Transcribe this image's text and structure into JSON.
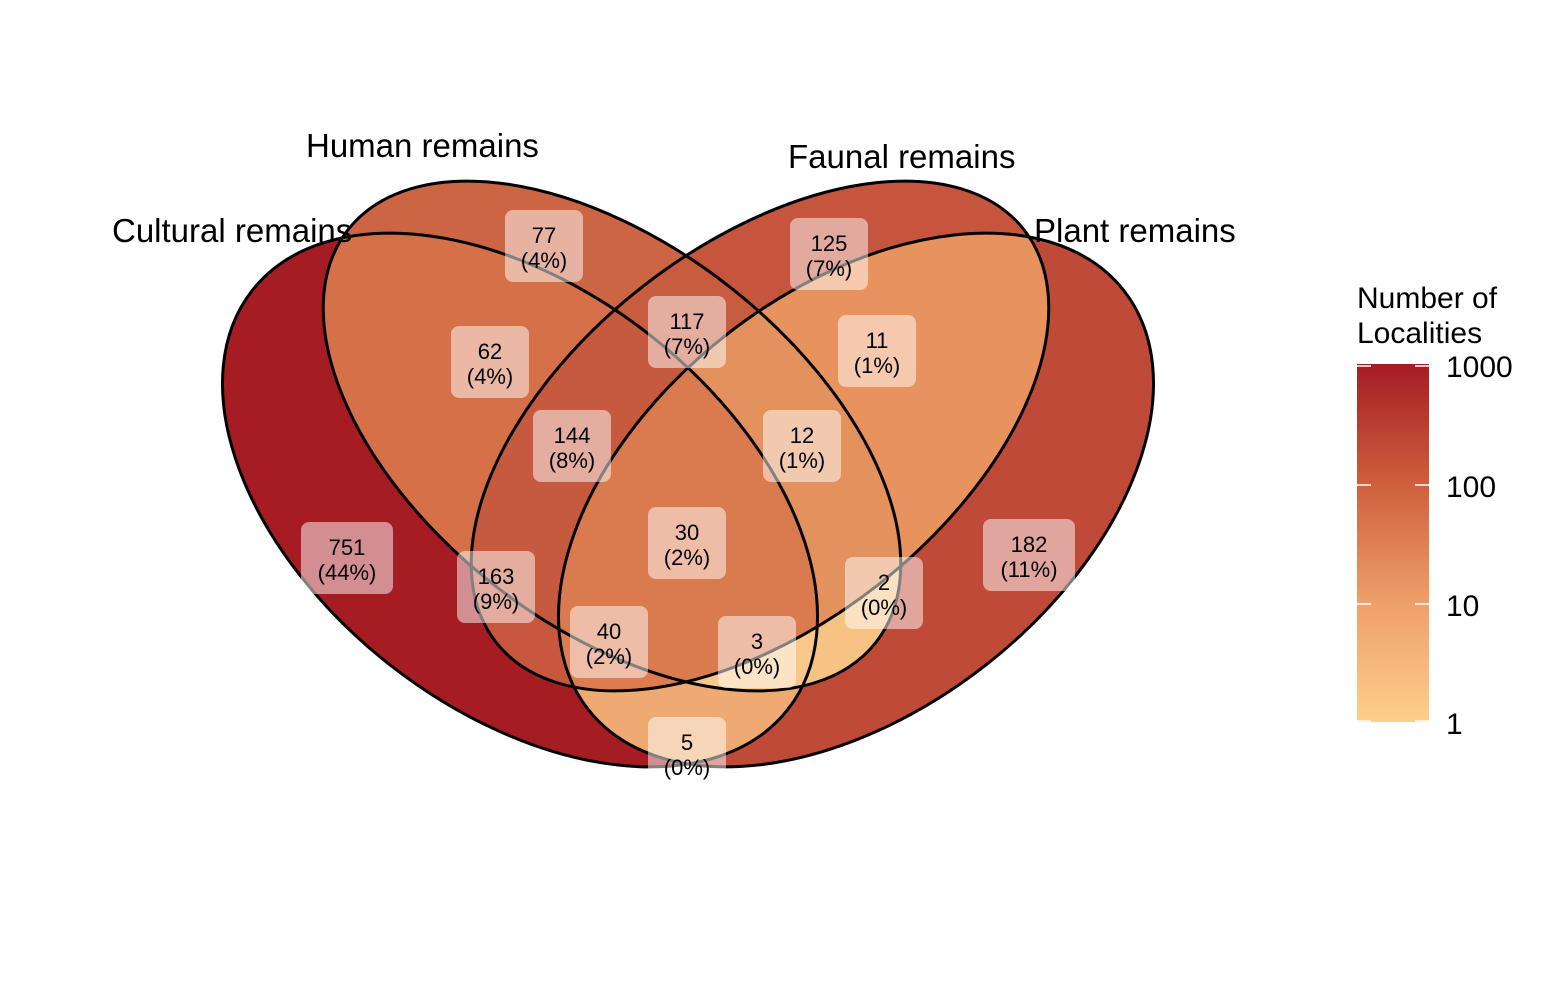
{
  "sets": [
    {
      "id": "cultural",
      "label": "Cultural remains"
    },
    {
      "id": "human",
      "label": "Human remains"
    },
    {
      "id": "faunal",
      "label": "Faunal remains"
    },
    {
      "id": "plant",
      "label": "Plant remains"
    }
  ],
  "regions": [
    {
      "id": "c-only",
      "sets": [
        "cultural"
      ],
      "count": "751",
      "pct": "(44%)",
      "value": 751
    },
    {
      "id": "h-only",
      "sets": [
        "human"
      ],
      "count": "77",
      "pct": "(4%)",
      "value": 77
    },
    {
      "id": "f-only",
      "sets": [
        "faunal"
      ],
      "count": "125",
      "pct": "(7%)",
      "value": 125
    },
    {
      "id": "p-only",
      "sets": [
        "plant"
      ],
      "count": "182",
      "pct": "(11%)",
      "value": 182
    },
    {
      "id": "c-h",
      "sets": [
        "cultural",
        "human"
      ],
      "count": "62",
      "pct": "(4%)",
      "value": 62
    },
    {
      "id": "h-f",
      "sets": [
        "human",
        "faunal"
      ],
      "count": "117",
      "pct": "(7%)",
      "value": 117
    },
    {
      "id": "f-p",
      "sets": [
        "faunal",
        "plant"
      ],
      "count": "11",
      "pct": "(1%)",
      "value": 11
    },
    {
      "id": "c-h-f",
      "sets": [
        "cultural",
        "human",
        "faunal"
      ],
      "count": "144",
      "pct": "(8%)",
      "value": 144
    },
    {
      "id": "h-f-p",
      "sets": [
        "human",
        "faunal",
        "plant"
      ],
      "count": "12",
      "pct": "(1%)",
      "value": 12
    },
    {
      "id": "c-f",
      "sets": [
        "cultural",
        "faunal"
      ],
      "count": "163",
      "pct": "(9%)",
      "value": 163
    },
    {
      "id": "all",
      "sets": [
        "cultural",
        "human",
        "faunal",
        "plant"
      ],
      "count": "30",
      "pct": "(2%)",
      "value": 30
    },
    {
      "id": "h-p",
      "sets": [
        "human",
        "plant"
      ],
      "count": "2",
      "pct": "(0%)",
      "value": 2
    },
    {
      "id": "c-f-p",
      "sets": [
        "cultural",
        "faunal",
        "plant"
      ],
      "count": "40",
      "pct": "(2%)",
      "value": 40
    },
    {
      "id": "c-h-p",
      "sets": [
        "cultural",
        "human",
        "plant"
      ],
      "count": "3",
      "pct": "(0%)",
      "value": 3
    },
    {
      "id": "c-p",
      "sets": [
        "cultural",
        "plant"
      ],
      "count": "5",
      "pct": "(0%)",
      "value": 5
    }
  ],
  "legend": {
    "title_line1": "Number of",
    "title_line2": "Localities",
    "scale": "log10",
    "ticks": [
      "1000",
      "100",
      "10",
      "1"
    ],
    "tick_values": [
      1000,
      100,
      10,
      1
    ],
    "color_low": "#fdcf8b",
    "color_high": "#a51c23"
  },
  "colors": {
    "outline": "#000000",
    "label_box": "#ffffff"
  }
}
